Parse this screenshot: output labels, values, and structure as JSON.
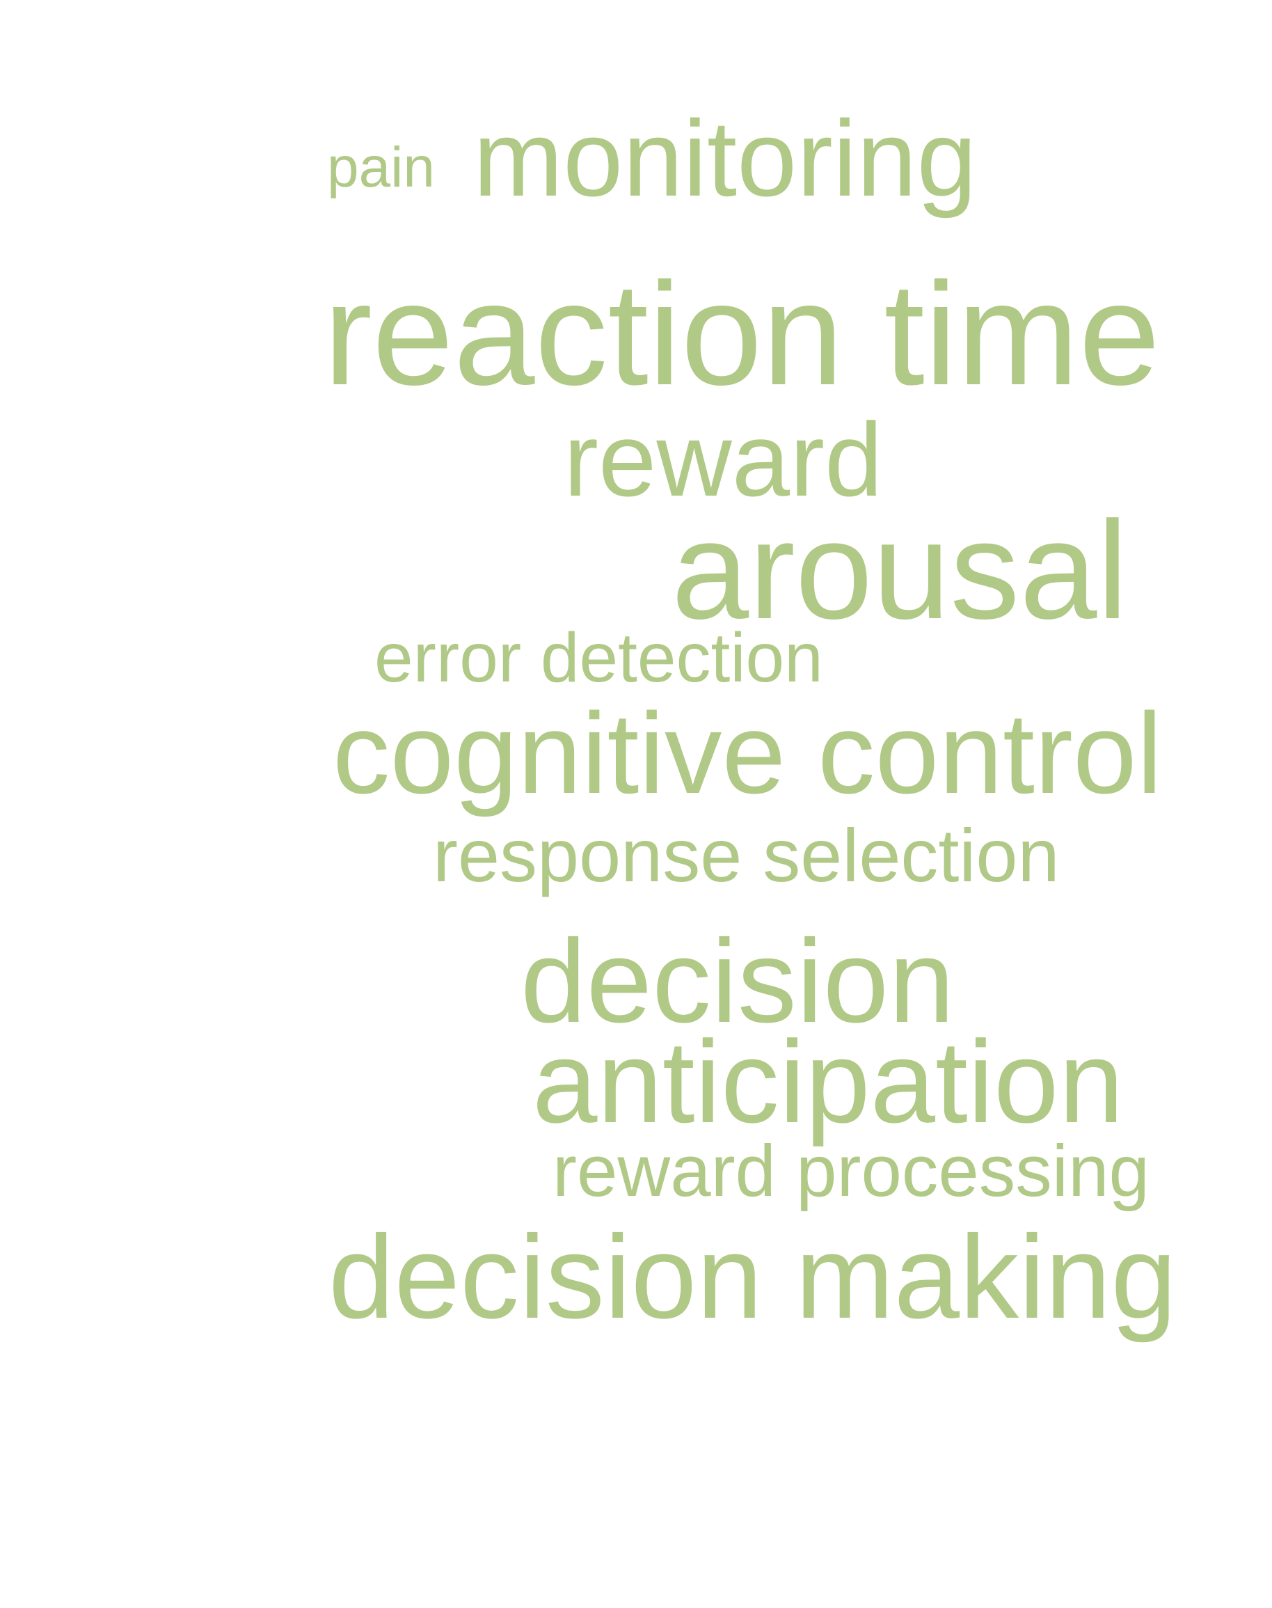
{
  "word_cloud": {
    "color": "#b0c986",
    "background": "#ffffff",
    "words": {
      "pain": "pain",
      "monitoring": "monitoring",
      "reaction_time": "reaction time",
      "reward": "reward",
      "arousal": "arousal",
      "error_detection": "error detection",
      "cognitive_control": "cognitive control",
      "response_selection": "response selection",
      "decision": "decision",
      "anticipation": "anticipation",
      "reward_processing": "reward processing",
      "decision_making": "decision making"
    }
  }
}
